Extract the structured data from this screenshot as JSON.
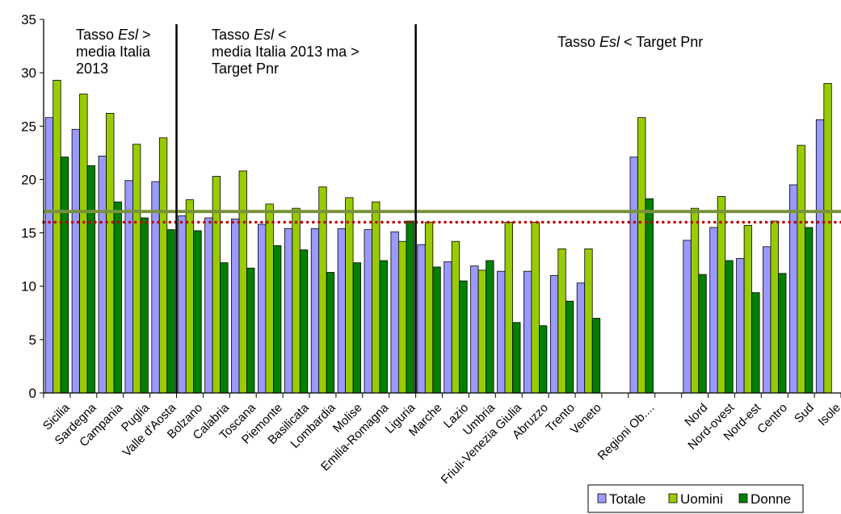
{
  "chart_data": {
    "type": "bar",
    "categories": [
      "Sicilia",
      "Sardegna",
      "Campania",
      "Puglia",
      "Valle d'Aosta",
      "Bolzano",
      "Calabria",
      "Toscana",
      "Piemonte",
      "Basilicata",
      "Lombardia",
      "Molise",
      "Emilia-Romagna",
      "Liguria",
      "Marche",
      "Lazio",
      "Umbria",
      "Friuli-Venezia Giulia",
      "Abruzzo",
      "Trento",
      "Veneto",
      "",
      "Regioni Ob....",
      "",
      "Nord",
      "Nord-ovest",
      "Nord-est",
      "Centro",
      "Sud",
      "Isole"
    ],
    "series": [
      {
        "name": "Totale",
        "color": "#9999ff",
        "values": [
          25.8,
          24.7,
          22.2,
          19.9,
          19.8,
          16.6,
          16.4,
          16.3,
          15.8,
          15.4,
          15.4,
          15.4,
          15.3,
          15.1,
          13.9,
          12.3,
          11.9,
          11.4,
          11.4,
          11.0,
          10.3,
          null,
          22.1,
          null,
          14.3,
          15.5,
          12.6,
          13.7,
          19.5,
          25.6
        ]
      },
      {
        "name": "Uomini",
        "color": "#99cc00",
        "values": [
          29.3,
          28.0,
          26.2,
          23.3,
          23.9,
          18.1,
          20.3,
          20.8,
          17.7,
          17.3,
          19.3,
          18.3,
          17.9,
          14.2,
          16.0,
          14.2,
          11.5,
          16.0,
          16.0,
          13.5,
          13.5,
          null,
          25.8,
          null,
          17.3,
          18.4,
          15.7,
          16.1,
          23.2,
          29.0
        ]
      },
      {
        "name": "Donne",
        "color": "#008000",
        "values": [
          22.1,
          21.3,
          17.9,
          16.4,
          15.3,
          15.2,
          12.2,
          11.7,
          13.8,
          13.4,
          11.3,
          12.2,
          12.4,
          16.1,
          11.8,
          10.5,
          12.4,
          6.6,
          6.3,
          8.6,
          7.0,
          null,
          18.2,
          null,
          11.1,
          12.4,
          9.4,
          11.2,
          15.5,
          null
        ]
      }
    ],
    "ylim": [
      0,
      35
    ],
    "yticks": [
      0,
      5,
      10,
      15,
      20,
      25,
      30,
      35
    ],
    "reference_lines": [
      {
        "value": 17.0,
        "color": "#77933c",
        "style": "solid"
      },
      {
        "value": 16.0,
        "color": "#c00000",
        "style": "dotted"
      }
    ],
    "separators_after_category": [
      4,
      13
    ],
    "annotations": [
      {
        "lines": [
          [
            "Tasso ",
            "Esl",
            " >"
          ],
          [
            "media Italia"
          ],
          [
            "2013"
          ]
        ]
      },
      {
        "lines": [
          [
            "Tasso ",
            "Esl",
            " <"
          ],
          [
            "media Italia 2013 ma >"
          ],
          [
            "Target Pnr"
          ]
        ]
      },
      {
        "lines": [
          [
            "Tasso ",
            "Esl",
            " < Target Pnr"
          ]
        ]
      }
    ],
    "legend": {
      "position": "bottom-right",
      "entries": [
        "Totale",
        "Uomini",
        "Donne"
      ]
    }
  }
}
